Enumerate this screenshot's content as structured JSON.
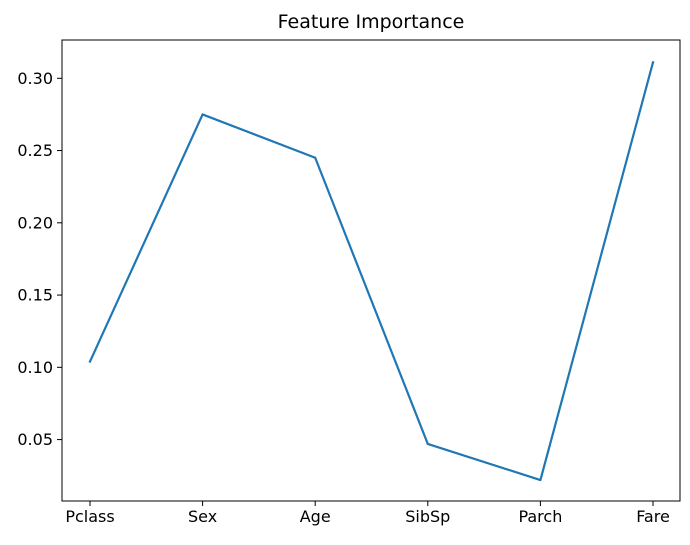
{
  "chart_data": {
    "type": "line",
    "title": "Feature Importance",
    "xlabel": "",
    "ylabel": "",
    "categories": [
      "Pclass",
      "Sex",
      "Age",
      "SibSp",
      "Parch",
      "Fare"
    ],
    "series": [
      {
        "values": [
          0.104,
          0.275,
          0.245,
          0.047,
          0.022,
          0.311
        ],
        "color": "#1f77b4"
      }
    ],
    "ylim": [
      0.0075,
      0.3265
    ],
    "yticks": [
      0.05,
      0.1,
      0.15,
      0.2,
      0.25,
      0.3
    ],
    "ytick_labels": [
      "0.05",
      "0.10",
      "0.15",
      "0.20",
      "0.25",
      "0.30"
    ],
    "grid": false,
    "legend": "none"
  }
}
